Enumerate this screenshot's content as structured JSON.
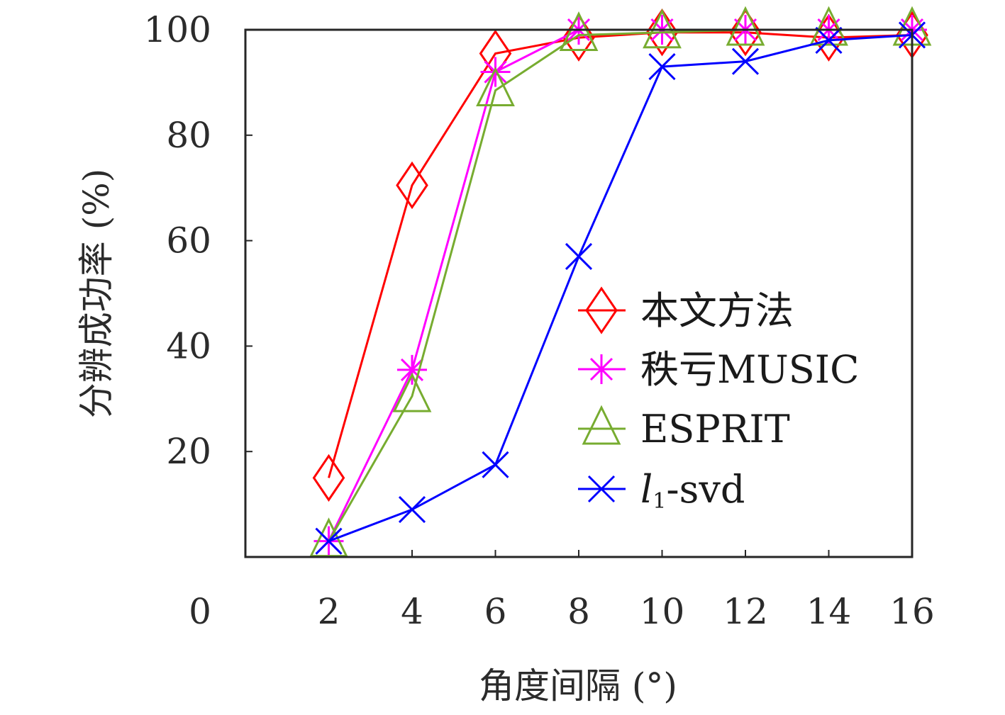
{
  "chart_data": {
    "type": "line",
    "xlabel": "角度间隔 (°)",
    "ylabel": "分辨成功率 (%)",
    "x": [
      2,
      4,
      6,
      8,
      10,
      12,
      14,
      16
    ],
    "x_ticks": [
      0,
      2,
      4,
      6,
      8,
      10,
      12,
      14,
      16
    ],
    "y_ticks": [
      20,
      40,
      60,
      80,
      100
    ],
    "xlim": [
      0,
      16
    ],
    "ylim": [
      0,
      100
    ],
    "grid": false,
    "legend_position": "center-right",
    "series": [
      {
        "name": "本文方法",
        "color": "#ff0000",
        "marker": "diamond",
        "values": [
          15,
          70.5,
          95.5,
          98.5,
          99.5,
          99.5,
          98.5,
          99
        ]
      },
      {
        "name": "秩亏MUSIC",
        "color": "#ff00ff",
        "marker": "asterisk",
        "values": [
          3,
          35.5,
          92,
          100,
          100,
          100,
          100,
          100
        ]
      },
      {
        "name": "ESPRIT",
        "color": "#77ac30",
        "marker": "triangle",
        "values": [
          3,
          30.5,
          88.5,
          99,
          99.5,
          100,
          100,
          100
        ]
      },
      {
        "name": "l1-svd",
        "name_main": "l",
        "name_sub": "1",
        "name_rest": "-svd",
        "color": "#0000ff",
        "marker": "x",
        "values": [
          3,
          9,
          17.5,
          57,
          93,
          94,
          98,
          99
        ]
      }
    ]
  }
}
